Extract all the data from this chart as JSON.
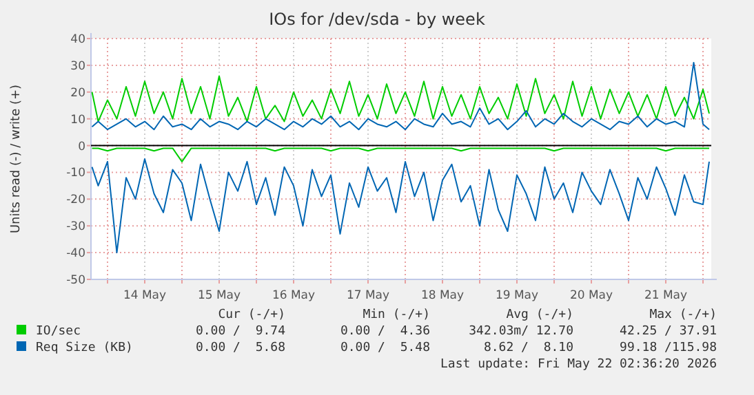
{
  "chart_data": {
    "type": "line",
    "title": "IOs for /dev/sda - by week",
    "ylabel": "Units read (-) / write (+)",
    "x": [
      "2026-05-13T19:00",
      "2026-05-13T21:00",
      "2026-05-14T00:00",
      "2026-05-14T03:00",
      "2026-05-14T06:00",
      "2026-05-14T09:00",
      "2026-05-14T12:00",
      "2026-05-14T15:00",
      "2026-05-14T18:00",
      "2026-05-14T21:00",
      "2026-05-15T00:00",
      "2026-05-15T03:00",
      "2026-05-15T06:00",
      "2026-05-15T09:00",
      "2026-05-15T12:00",
      "2026-05-15T15:00",
      "2026-05-15T18:00",
      "2026-05-15T21:00",
      "2026-05-16T00:00",
      "2026-05-16T03:00",
      "2026-05-16T06:00",
      "2026-05-16T09:00",
      "2026-05-16T12:00",
      "2026-05-16T15:00",
      "2026-05-16T18:00",
      "2026-05-16T21:00",
      "2026-05-17T00:00",
      "2026-05-17T03:00",
      "2026-05-17T06:00",
      "2026-05-17T09:00",
      "2026-05-17T12:00",
      "2026-05-17T15:00",
      "2026-05-17T18:00",
      "2026-05-17T21:00",
      "2026-05-18T00:00",
      "2026-05-18T03:00",
      "2026-05-18T06:00",
      "2026-05-18T09:00",
      "2026-05-18T12:00",
      "2026-05-18T15:00",
      "2026-05-18T18:00",
      "2026-05-18T21:00",
      "2026-05-19T00:00",
      "2026-05-19T03:00",
      "2026-05-19T06:00",
      "2026-05-19T09:00",
      "2026-05-19T12:00",
      "2026-05-19T15:00",
      "2026-05-19T18:00",
      "2026-05-19T21:00",
      "2026-05-20T00:00",
      "2026-05-20T03:00",
      "2026-05-20T06:00",
      "2026-05-20T09:00",
      "2026-05-20T12:00",
      "2026-05-20T15:00",
      "2026-05-20T18:00",
      "2026-05-20T21:00",
      "2026-05-21T00:00",
      "2026-05-21T03:00",
      "2026-05-21T06:00",
      "2026-05-21T09:00",
      "2026-05-21T12:00",
      "2026-05-21T15:00",
      "2026-05-21T18:00",
      "2026-05-21T21:00",
      "2026-05-22T00:00",
      "2026-05-22T02:00"
    ],
    "xlim": [
      "2026-05-13T18:40",
      "2026-05-22T02:40"
    ],
    "xticks": [
      {
        "value": "2026-05-14T00:00",
        "label": null
      },
      {
        "value": "2026-05-14T12:00",
        "label": "14 May"
      },
      {
        "value": "2026-05-15T00:00",
        "label": null
      },
      {
        "value": "2026-05-15T12:00",
        "label": "15 May"
      },
      {
        "value": "2026-05-16T00:00",
        "label": null
      },
      {
        "value": "2026-05-16T12:00",
        "label": "16 May"
      },
      {
        "value": "2026-05-17T00:00",
        "label": null
      },
      {
        "value": "2026-05-17T12:00",
        "label": "17 May"
      },
      {
        "value": "2026-05-18T00:00",
        "label": null
      },
      {
        "value": "2026-05-18T12:00",
        "label": "18 May"
      },
      {
        "value": "2026-05-19T00:00",
        "label": null
      },
      {
        "value": "2026-05-19T12:00",
        "label": "19 May"
      },
      {
        "value": "2026-05-20T00:00",
        "label": null
      },
      {
        "value": "2026-05-20T12:00",
        "label": "20 May"
      },
      {
        "value": "2026-05-21T00:00",
        "label": null
      },
      {
        "value": "2026-05-21T12:00",
        "label": "21 May"
      },
      {
        "value": "2026-05-22T00:00",
        "label": null
      }
    ],
    "ylim": [
      -50,
      40
    ],
    "yticks": [
      -50,
      -40,
      -30,
      -20,
      -10,
      0,
      10,
      20,
      30,
      40
    ],
    "grid": true,
    "legend": "bottom",
    "series": [
      {
        "name": "IO/sec",
        "color": "#00cc00",
        "values": [
          20,
          9,
          17,
          10,
          22,
          11,
          24,
          12,
          20,
          10,
          25,
          12,
          22,
          10,
          26,
          11,
          18,
          9,
          22,
          10,
          15,
          9,
          20,
          11,
          17,
          10,
          21,
          12,
          24,
          11,
          19,
          10,
          23,
          12,
          20,
          11,
          24,
          10,
          22,
          11,
          19,
          10,
          22,
          12,
          18,
          10,
          23,
          11,
          25,
          12,
          19,
          10,
          24,
          11,
          22,
          10,
          21,
          12,
          20,
          11,
          19,
          10,
          22,
          11,
          18,
          10,
          21,
          12
        ]
      },
      {
        "color": "#00cc00",
        "values": [
          -1,
          -1,
          -2,
          -1,
          -1,
          -1,
          -1,
          -2,
          -1,
          -1,
          -6,
          -1,
          -1,
          -1,
          -1,
          -1,
          -1,
          -1,
          -1,
          -1,
          -2,
          -1,
          -1,
          -1,
          -1,
          -1,
          -2,
          -1,
          -1,
          -1,
          -2,
          -1,
          -1,
          -1,
          -1,
          -1,
          -1,
          -1,
          -1,
          -1,
          -2,
          -1,
          -1,
          -1,
          -1,
          -1,
          -1,
          -1,
          -1,
          -1,
          -2,
          -1,
          -1,
          -1,
          -1,
          -1,
          -1,
          -1,
          -1,
          -1,
          -1,
          -1,
          -2,
          -1,
          -1,
          -1,
          -1,
          -1
        ]
      },
      {
        "name": "Req Size (KB)",
        "color": "#0066b3",
        "values": [
          7,
          9,
          6,
          8,
          10,
          7,
          9,
          6,
          11,
          7,
          8,
          6,
          10,
          7,
          9,
          8,
          6,
          9,
          7,
          10,
          8,
          6,
          9,
          7,
          10,
          8,
          11,
          7,
          9,
          6,
          10,
          8,
          7,
          9,
          6,
          10,
          8,
          7,
          12,
          8,
          9,
          7,
          14,
          8,
          10,
          6,
          9,
          13,
          7,
          10,
          8,
          12,
          9,
          7,
          10,
          8,
          6,
          9,
          8,
          11,
          7,
          10,
          8,
          9,
          7,
          31,
          8,
          6
        ]
      },
      {
        "color": "#0066b3",
        "values": [
          -8,
          -15,
          -6,
          -40,
          -12,
          -20,
          -5,
          -18,
          -25,
          -9,
          -14,
          -28,
          -7,
          -20,
          -32,
          -10,
          -17,
          -6,
          -22,
          -12,
          -26,
          -8,
          -15,
          -30,
          -9,
          -19,
          -11,
          -33,
          -14,
          -23,
          -8,
          -17,
          -12,
          -25,
          -6,
          -19,
          -10,
          -28,
          -13,
          -7,
          -21,
          -15,
          -30,
          -9,
          -24,
          -32,
          -11,
          -18,
          -28,
          -8,
          -20,
          -14,
          -25,
          -10,
          -17,
          -22,
          -9,
          -18,
          -28,
          -12,
          -20,
          -8,
          -16,
          -26,
          -11,
          -21,
          -22,
          -6
        ]
      }
    ],
    "annotations": [
      "Cur (-/+)",
      "Min (-/+)",
      "Avg (-/+)",
      "Max (-/+)",
      "0.00 /  9.74",
      "0.00 /  4.36",
      "342.03m/ 12.70",
      "42.25 / 37.91",
      "0.00 /  5.68",
      "0.00 /  5.48",
      "8.62 /  8.10",
      "99.18 /115.98",
      "Last update: Fri May 22 02:36:20 2026"
    ]
  }
}
